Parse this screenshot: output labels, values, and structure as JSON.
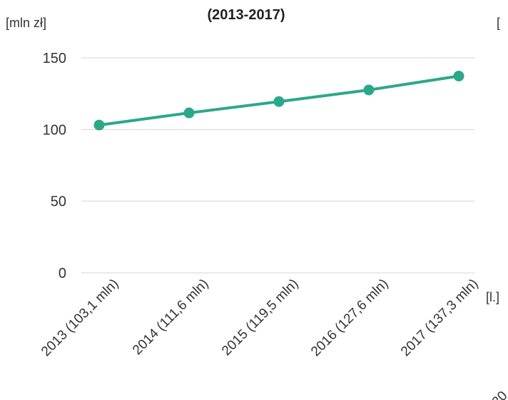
{
  "colors": {
    "series": "#2ba88a",
    "grid": "#d6d6d6",
    "text": "#333333"
  },
  "chart_data": {
    "type": "line",
    "title": "",
    "subtitle": "(2013-2017)",
    "unit_label": "[mln zł]",
    "x_unit_label": "[l.]",
    "right_clipped_text": "[",
    "right_clipped_tick": "20",
    "xlabel": "",
    "ylabel": "",
    "categories": [
      "2013 (103,1 mln)",
      "2014 (111,6 mln)",
      "2015 (119,5 mln)",
      "2016 (127,6 mln)",
      "2017 (137,3 mln)"
    ],
    "series": [
      {
        "values": [
          103.1,
          111.6,
          119.5,
          127.6,
          137.3
        ]
      }
    ],
    "yticks": [
      "0",
      "50",
      "100",
      "150"
    ],
    "ytick_values": [
      0,
      50,
      100,
      150
    ],
    "ylim": [
      0,
      150
    ],
    "grid": true,
    "legend": "none"
  }
}
